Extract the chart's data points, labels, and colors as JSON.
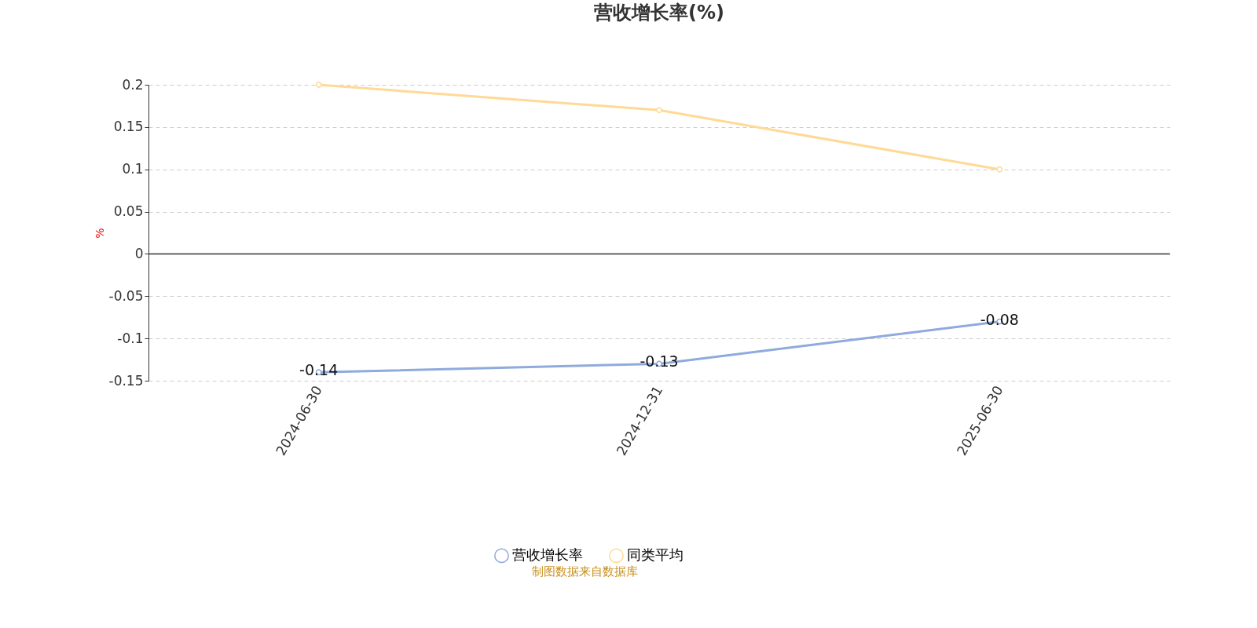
{
  "chart_data": {
    "type": "line",
    "title": "营收增长率(%)",
    "ylabel": "%",
    "categories": [
      "2024-06-30",
      "2024-12-31",
      "2025-06-30"
    ],
    "series": [
      {
        "name": "营收增长率",
        "color": "#8faadc",
        "values": [
          -0.14,
          -0.13,
          -0.08
        ],
        "value_labels": [
          "-0.14",
          "-0.13",
          "-0.08"
        ]
      },
      {
        "name": "同类平均",
        "color": "#ffd995",
        "values": [
          0.2,
          0.17,
          0.1
        ]
      }
    ],
    "ylim": [
      -0.15,
      0.2
    ],
    "yticks": [
      -0.15,
      -0.1,
      -0.05,
      0,
      0.05,
      0.1,
      0.15,
      0.2
    ],
    "grid": "y",
    "legend": "bottom",
    "marker": "circle",
    "line_style": "solid",
    "annotations": [
      "制图数据来自数据库"
    ]
  }
}
